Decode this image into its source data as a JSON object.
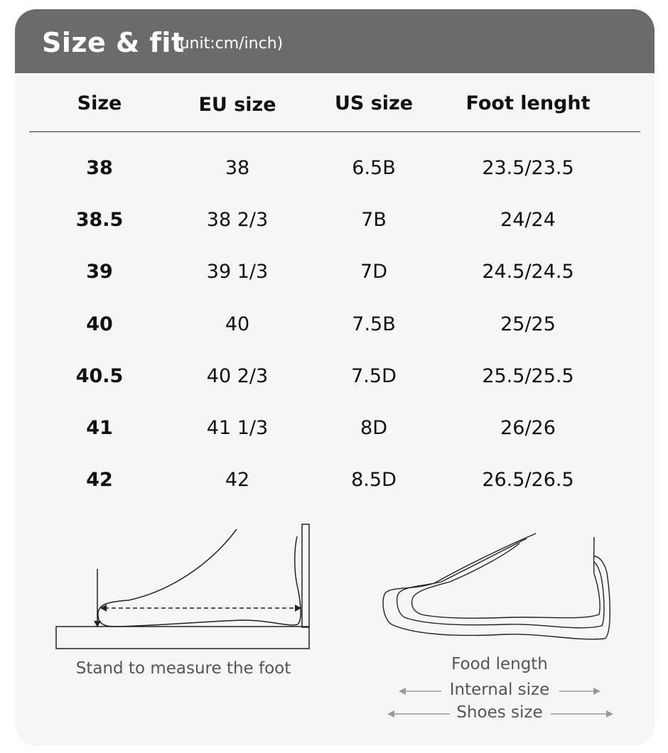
{
  "header": {
    "title": "Size & fit",
    "unit": "(unit:cm/inch)"
  },
  "table": {
    "columns": [
      "Size",
      "EU size",
      "US size",
      "Foot lenght"
    ],
    "rows": [
      [
        "38",
        "38",
        "6.5B",
        "23.5/23.5"
      ],
      [
        "38.5",
        "38 2/3",
        "7B",
        "24/24"
      ],
      [
        "39",
        "39 1/3",
        "7D",
        "24.5/24.5"
      ],
      [
        "40",
        "40",
        "7.5B",
        "25/25"
      ],
      [
        "40.5",
        "40 2/3",
        "7.5D",
        "25.5/25.5"
      ],
      [
        "41",
        "41 1/3",
        "8D",
        "26/26"
      ],
      [
        "42",
        "42",
        "8.5D",
        "26.5/26.5"
      ]
    ]
  },
  "illustrations": {
    "left_caption": "Stand to measure the foot",
    "right_captions": {
      "food_length": "Food length",
      "internal_size": "Internal size",
      "shoes_size": "Shoes size"
    }
  },
  "colors": {
    "header_bg": "#6b6b6b",
    "card_bg": "#f6f6f6",
    "line": "#333333",
    "arrow": "#9a9a9a"
  }
}
